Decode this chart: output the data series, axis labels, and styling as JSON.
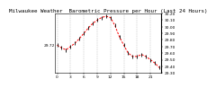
{
  "title": "Milwaukee Weather  Barometric Pressure per Hour (Last 24 Hours)",
  "hours": [
    0,
    1,
    2,
    3,
    4,
    5,
    6,
    7,
    8,
    9,
    10,
    11,
    12,
    13,
    14,
    15,
    16,
    17,
    18,
    19,
    20,
    21,
    22,
    23
  ],
  "pressure": [
    29.72,
    29.68,
    29.65,
    29.7,
    29.75,
    29.82,
    29.9,
    29.98,
    30.05,
    30.1,
    30.14,
    30.16,
    30.14,
    30.02,
    29.85,
    29.72,
    29.6,
    29.55,
    29.55,
    29.58,
    29.55,
    29.5,
    29.45,
    29.38
  ],
  "line_color": "#ff0000",
  "marker_color": "#000000",
  "bg_color": "#ffffff",
  "grid_color": "#999999",
  "title_fontsize": 4.2,
  "tick_fontsize": 3.2,
  "ylim_min": 29.3,
  "ylim_max": 30.2,
  "ytick_step": 0.1,
  "xlabel_every": 3,
  "left_label": "29.72",
  "right_border_color": "#000000"
}
